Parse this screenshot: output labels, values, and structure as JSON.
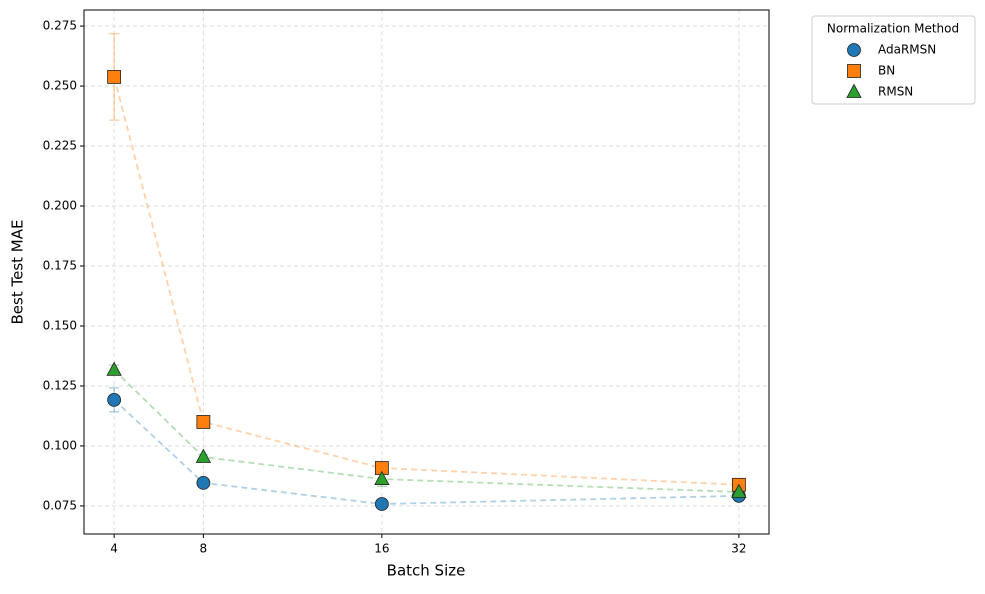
{
  "chart_data": {
    "type": "scatter",
    "xlabel": "Batch Size",
    "ylabel": "Best Test MAE",
    "x": [
      4,
      8,
      16,
      32
    ],
    "series": [
      {
        "name": "AdaRMSN",
        "color": "#1f77b4",
        "marker": "circle",
        "values": [
          0.1192,
          0.0846,
          0.0758,
          0.0792
        ],
        "errors": [
          0.005,
          0.001,
          0.001,
          0.001
        ]
      },
      {
        "name": "BN",
        "color": "#ff7f0e",
        "marker": "square",
        "values": [
          0.2538,
          0.11,
          0.0908,
          0.0838
        ],
        "errors": [
          0.018,
          0.001,
          0.001,
          0.001
        ]
      },
      {
        "name": "RMSN",
        "color": "#2ca02c",
        "marker": "triangle",
        "values": [
          0.1317,
          0.0954,
          0.0862,
          0.0808
        ],
        "errors": [
          0.002,
          0.001,
          0.003,
          0.001
        ]
      }
    ],
    "xlim": [
      2.65,
      33.35
    ],
    "ylim": [
      0.0633,
      0.2817
    ],
    "xticks": [
      4,
      8,
      16,
      32
    ],
    "yticks": [
      0.075,
      {
        "value": 0.1,
        "label": "0.100"
      },
      0.125,
      {
        "value": 0.15,
        "label": "0.150"
      },
      0.175,
      {
        "value": 0.2,
        "label": "0.200"
      },
      0.225,
      {
        "value": 0.25,
        "label": "0.250"
      },
      0.275
    ],
    "grid": true,
    "legend_title": "Normalization Method",
    "legend_position": "outside upper right"
  }
}
